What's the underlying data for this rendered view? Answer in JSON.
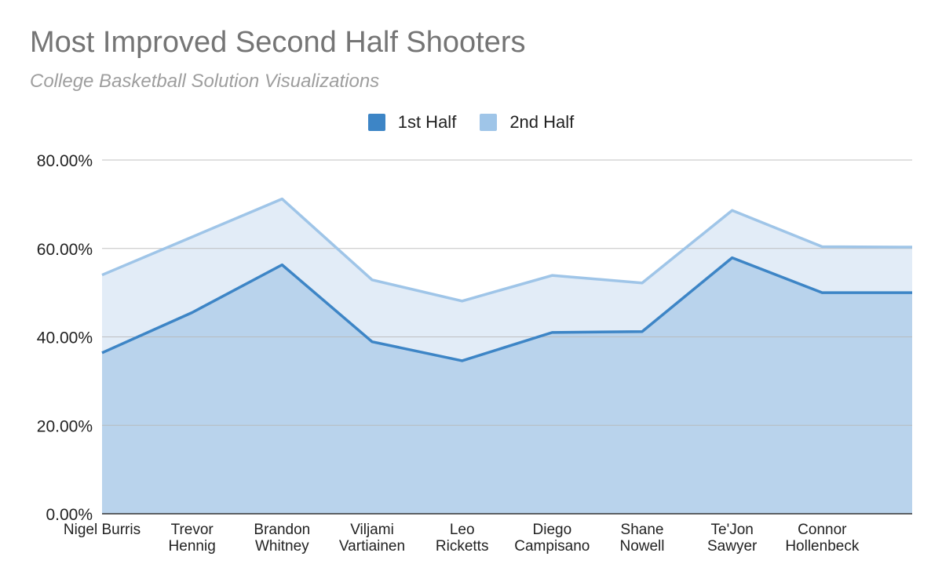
{
  "chart_data": {
    "type": "area",
    "title": "Most Improved Second Half Shooters",
    "subtitle": "College Basketball Solution Visualizations",
    "categories": [
      [
        "Nigel Burris"
      ],
      [
        "Trevor",
        "Hennig"
      ],
      [
        "Brandon",
        "Whitney"
      ],
      [
        "Viljami",
        "Vartiainen"
      ],
      [
        "Leo",
        "Ricketts"
      ],
      [
        "Diego",
        "Campisano"
      ],
      [
        "Shane",
        "Nowell"
      ],
      [
        "Te'Jon",
        "Sawyer"
      ],
      [
        "Connor",
        "Hollenbeck"
      ],
      [
        ""
      ]
    ],
    "series": [
      {
        "name": "1st Half",
        "color": "#3d85c6",
        "fill": "#b9d3ec",
        "values": [
          36.4,
          45.5,
          56.3,
          38.9,
          34.6,
          41.0,
          41.2,
          57.9,
          50.0,
          50.0
        ]
      },
      {
        "name": "2nd Half",
        "color": "#9fc5e8",
        "fill": "#e2ecf7",
        "values": [
          54.0,
          62.6,
          71.2,
          52.9,
          48.1,
          53.9,
          52.2,
          68.6,
          60.4,
          60.3
        ]
      }
    ],
    "ylim": [
      0,
      80
    ],
    "yticks": [
      "0.00%",
      "20.00%",
      "40.00%",
      "60.00%",
      "80.00%"
    ],
    "ytick_values": [
      0,
      20,
      40,
      60,
      80
    ],
    "grid": true,
    "legend_position": "top-center"
  }
}
